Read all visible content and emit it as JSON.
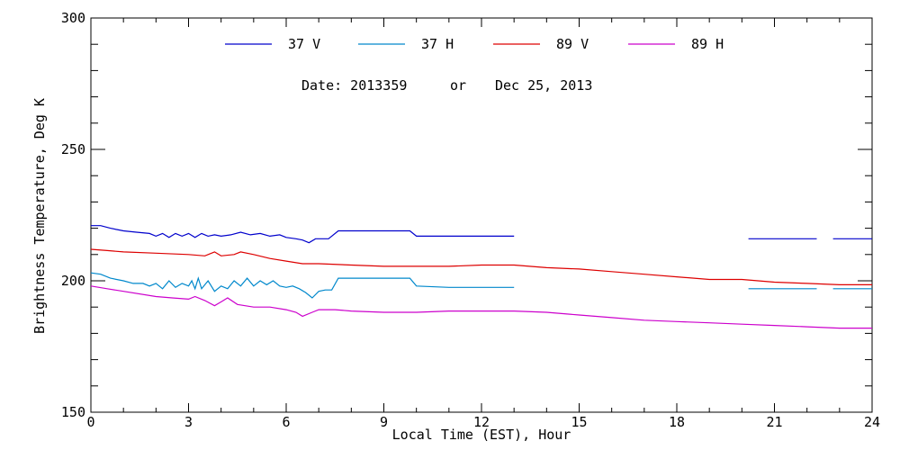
{
  "chart_data": {
    "type": "line",
    "title": "",
    "xlabel": "Local Time (EST), Hour",
    "ylabel": "Brightness Temperature, Deg K",
    "xlim": [
      0,
      24
    ],
    "ylim": [
      150,
      300
    ],
    "xticks": [
      0,
      3,
      6,
      9,
      12,
      15,
      18,
      21,
      24
    ],
    "yticks": [
      150,
      200,
      250,
      300
    ],
    "grid": false,
    "legend_position": "top-center",
    "date_label": "Date: 2013359",
    "date_or": "or",
    "date_full": "Dec 25, 2013",
    "series": [
      {
        "name": "37 V",
        "color": "#0000cc",
        "segments": [
          [
            [
              0,
              221
            ],
            [
              0.3,
              221
            ],
            [
              0.6,
              220
            ],
            [
              1,
              219
            ],
            [
              1.4,
              218.5
            ],
            [
              1.8,
              218
            ],
            [
              2,
              217
            ],
            [
              2.2,
              218
            ],
            [
              2.4,
              216.5
            ],
            [
              2.6,
              218
            ],
            [
              2.8,
              217
            ],
            [
              3,
              218
            ],
            [
              3.2,
              216.5
            ],
            [
              3.4,
              218
            ],
            [
              3.6,
              217
            ],
            [
              3.8,
              217.5
            ],
            [
              4,
              217
            ],
            [
              4.3,
              217.5
            ],
            [
              4.6,
              218.5
            ],
            [
              4.9,
              217.5
            ],
            [
              5.2,
              218
            ],
            [
              5.5,
              217
            ],
            [
              5.8,
              217.5
            ],
            [
              6,
              216.5
            ],
            [
              6.3,
              216
            ],
            [
              6.5,
              215.5
            ],
            [
              6.7,
              214.5
            ],
            [
              6.9,
              216
            ],
            [
              7.1,
              216
            ],
            [
              7.3,
              216
            ],
            [
              7.6,
              219
            ],
            [
              8,
              219
            ],
            [
              9,
              219
            ],
            [
              9.8,
              219
            ],
            [
              10,
              217
            ],
            [
              11,
              217
            ],
            [
              12,
              217
            ],
            [
              13,
              217
            ]
          ],
          [
            [
              20.2,
              216
            ],
            [
              22.3,
              216
            ]
          ],
          [
            [
              22.8,
              216
            ],
            [
              24,
              216
            ]
          ]
        ]
      },
      {
        "name": "37 H",
        "color": "#0088cc",
        "segments": [
          [
            [
              0,
              203
            ],
            [
              0.3,
              202.5
            ],
            [
              0.6,
              201
            ],
            [
              1,
              200
            ],
            [
              1.3,
              199
            ],
            [
              1.6,
              199
            ],
            [
              1.8,
              198
            ],
            [
              2,
              199
            ],
            [
              2.2,
              197
            ],
            [
              2.4,
              200
            ],
            [
              2.6,
              197.5
            ],
            [
              2.8,
              199
            ],
            [
              3,
              198
            ],
            [
              3.1,
              200
            ],
            [
              3.2,
              197
            ],
            [
              3.3,
              201
            ],
            [
              3.4,
              197
            ],
            [
              3.6,
              200
            ],
            [
              3.8,
              196
            ],
            [
              4,
              198
            ],
            [
              4.2,
              197
            ],
            [
              4.4,
              200
            ],
            [
              4.6,
              198
            ],
            [
              4.8,
              201
            ],
            [
              5,
              198
            ],
            [
              5.2,
              200
            ],
            [
              5.4,
              198.5
            ],
            [
              5.6,
              200
            ],
            [
              5.8,
              198
            ],
            [
              6,
              197.5
            ],
            [
              6.2,
              198
            ],
            [
              6.4,
              197
            ],
            [
              6.6,
              195.5
            ],
            [
              6.8,
              193.5
            ],
            [
              7,
              196
            ],
            [
              7.2,
              196.5
            ],
            [
              7.4,
              196.5
            ],
            [
              7.6,
              201
            ],
            [
              8,
              201
            ],
            [
              9,
              201
            ],
            [
              9.8,
              201
            ],
            [
              10,
              198
            ],
            [
              11,
              197.5
            ],
            [
              12,
              197.5
            ],
            [
              13,
              197.5
            ]
          ],
          [
            [
              20.2,
              197
            ],
            [
              22.3,
              197
            ]
          ],
          [
            [
              22.8,
              197
            ],
            [
              24,
              197
            ]
          ]
        ]
      },
      {
        "name": "89 V",
        "color": "#dd0000",
        "segments": [
          [
            [
              0,
              212
            ],
            [
              0.5,
              211.5
            ],
            [
              1,
              211
            ],
            [
              2,
              210.5
            ],
            [
              3,
              210
            ],
            [
              3.5,
              209.5
            ],
            [
              3.8,
              211
            ],
            [
              4,
              209.5
            ],
            [
              4.4,
              210
            ],
            [
              4.6,
              211
            ],
            [
              5,
              210
            ],
            [
              5.5,
              208.5
            ],
            [
              6,
              207.5
            ],
            [
              6.5,
              206.5
            ],
            [
              7,
              206.5
            ],
            [
              8,
              206
            ],
            [
              9,
              205.5
            ],
            [
              10,
              205.5
            ],
            [
              11,
              205.5
            ],
            [
              12,
              206
            ],
            [
              13,
              206
            ],
            [
              14,
              205
            ],
            [
              15,
              204.5
            ],
            [
              16,
              203.5
            ],
            [
              17,
              202.5
            ],
            [
              18,
              201.5
            ],
            [
              19,
              200.5
            ],
            [
              20,
              200.5
            ],
            [
              21,
              199.5
            ],
            [
              22,
              199
            ],
            [
              23,
              198.5
            ],
            [
              24,
              198.5
            ]
          ]
        ]
      },
      {
        "name": "89 H",
        "color": "#cc00cc",
        "segments": [
          [
            [
              0,
              198
            ],
            [
              0.5,
              197
            ],
            [
              1,
              196
            ],
            [
              2,
              194
            ],
            [
              2.5,
              193.5
            ],
            [
              3,
              193
            ],
            [
              3.2,
              194
            ],
            [
              3.5,
              192.5
            ],
            [
              3.8,
              190.5
            ],
            [
              4,
              192
            ],
            [
              4.2,
              193.5
            ],
            [
              4.5,
              191
            ],
            [
              5,
              190
            ],
            [
              5.5,
              190
            ],
            [
              6,
              189
            ],
            [
              6.3,
              188
            ],
            [
              6.5,
              186.5
            ],
            [
              6.8,
              188
            ],
            [
              7,
              189
            ],
            [
              7.5,
              189
            ],
            [
              8,
              188.5
            ],
            [
              9,
              188
            ],
            [
              10,
              188
            ],
            [
              11,
              188.5
            ],
            [
              12,
              188.5
            ],
            [
              13,
              188.5
            ],
            [
              14,
              188
            ],
            [
              15,
              187
            ],
            [
              16,
              186
            ],
            [
              17,
              185
            ],
            [
              18,
              184.5
            ],
            [
              19,
              184
            ],
            [
              20,
              183.5
            ],
            [
              21,
              183
            ],
            [
              22,
              182.5
            ],
            [
              23,
              182
            ],
            [
              24,
              182
            ]
          ]
        ]
      }
    ]
  }
}
